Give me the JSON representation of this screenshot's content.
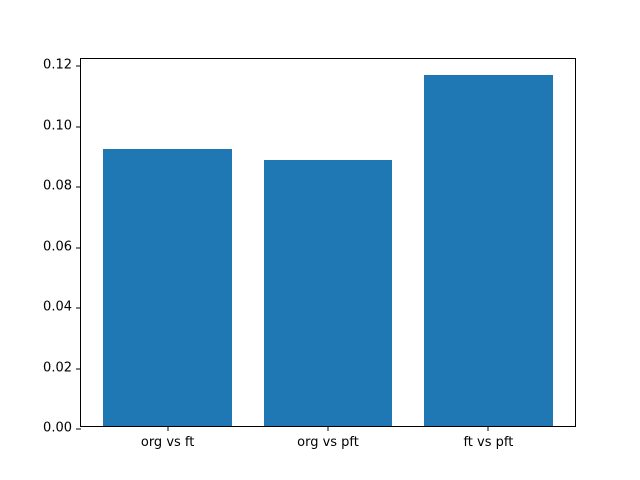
{
  "chart_data": {
    "type": "bar",
    "categories": [
      "org vs ft",
      "org vs pft",
      "ft vs pft"
    ],
    "values": [
      0.0915,
      0.0878,
      0.116
    ],
    "title": "",
    "xlabel": "",
    "ylabel": "",
    "ylim": [
      0,
      0.122
    ],
    "yticks": [
      0.0,
      0.02,
      0.04,
      0.06,
      0.08,
      0.1,
      0.12
    ],
    "ytick_label_format": "2dp",
    "bar_color": "#1f77b4",
    "axis_color": "#000000",
    "background_color": "#ffffff",
    "grid": false,
    "legend": null
  }
}
